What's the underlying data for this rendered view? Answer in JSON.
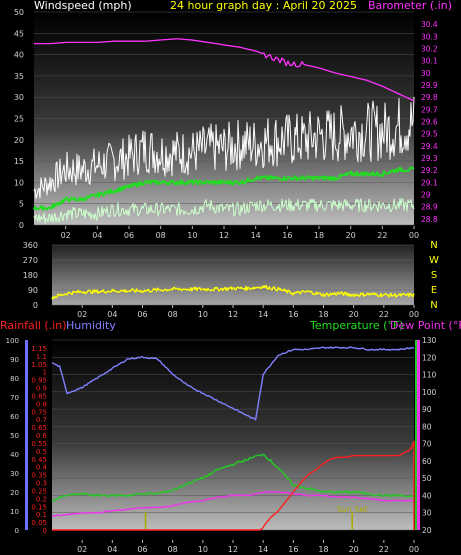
{
  "header": {
    "windspeed_label": "Windspeed (mph)",
    "title": "24 hour graph day : April 20 2025",
    "barometer_label": "Barometer (.in)"
  },
  "labels": {
    "rainfall": "Rainfall (.in)",
    "humidity": "Humidity",
    "temperature": "Temperature (°F)",
    "dew_point": "Dew Point (°F)",
    "sunrise": "Sunrise",
    "sunset": "Sun Set"
  },
  "colors": {
    "barometer": "#ff33ff",
    "wind_gust": "#ffffff",
    "wind_avg": "#22dd22",
    "wind_low": "#ccffcc",
    "direction": "#ffff00",
    "humidity": "#8080ff",
    "temperature": "#22cc22",
    "dew_point": "#ee33ee",
    "rainfall": "#ff2020",
    "sun_marker": "#aaaa00"
  },
  "chart_data": [
    {
      "type": "line",
      "title": "24 hour graph day : April 20 2025",
      "x_ticks": [
        "02",
        "04",
        "06",
        "08",
        "10",
        "12",
        "14",
        "16",
        "18",
        "20",
        "22",
        "00"
      ],
      "xlim": [
        0,
        24
      ],
      "y_left": {
        "label": "Windspeed (mph)",
        "lim": [
          0,
          50
        ],
        "ticks": [
          0,
          5,
          10,
          15,
          20,
          25,
          30,
          35,
          40,
          45,
          50
        ]
      },
      "y_right": {
        "label": "Barometer (.in)",
        "lim": [
          28.75,
          30.5
        ],
        "ticks": [
          "28.8",
          "28.9",
          "29",
          "29.1",
          "29.2",
          "29.3",
          "29.4",
          "29.5",
          "29.6",
          "29.7",
          "29.8",
          "29.9",
          "30",
          "30.1",
          "30.2",
          "30.3",
          "30.4"
        ]
      },
      "series": [
        {
          "key": "barometer",
          "axis": "right",
          "x": [
            0,
            1,
            2,
            3,
            4,
            5,
            6,
            7,
            8,
            9,
            10,
            11,
            12,
            13,
            14,
            15,
            16,
            17,
            18,
            19,
            20,
            21,
            22,
            23,
            24
          ],
          "y": [
            30.24,
            30.24,
            30.25,
            30.25,
            30.25,
            30.26,
            30.26,
            30.26,
            30.27,
            30.28,
            30.27,
            30.25,
            30.23,
            30.21,
            30.18,
            30.13,
            30.08,
            30.07,
            30.04,
            30.0,
            29.97,
            29.94,
            29.89,
            29.83,
            29.77
          ]
        },
        {
          "key": "wind_gust",
          "axis": "left",
          "x": [
            0,
            1,
            2,
            3,
            4,
            5,
            6,
            7,
            8,
            9,
            10,
            11,
            12,
            13,
            14,
            15,
            16,
            17,
            18,
            19,
            20,
            21,
            22,
            23,
            24
          ],
          "y": [
            8,
            10,
            13,
            13,
            14,
            15,
            16,
            18,
            17,
            17,
            17,
            18,
            18,
            19,
            19,
            20,
            20,
            20,
            21,
            21,
            22,
            22,
            22,
            23,
            24
          ]
        },
        {
          "key": "wind_avg",
          "axis": "left",
          "x": [
            0,
            1,
            2,
            3,
            4,
            5,
            6,
            7,
            8,
            9,
            10,
            11,
            12,
            13,
            14,
            15,
            16,
            17,
            18,
            19,
            20,
            21,
            22,
            23,
            24
          ],
          "y": [
            4,
            4,
            6,
            6,
            7,
            8,
            9,
            10,
            10,
            10,
            10,
            10,
            10,
            10,
            11,
            11,
            11,
            11,
            11,
            11,
            12,
            12,
            12,
            13,
            13
          ]
        },
        {
          "key": "wind_low",
          "axis": "left",
          "x": [
            0,
            1,
            2,
            3,
            4,
            5,
            6,
            7,
            8,
            9,
            10,
            11,
            12,
            13,
            14,
            15,
            16,
            17,
            18,
            19,
            20,
            21,
            22,
            23,
            24
          ],
          "y": [
            1,
            1,
            2,
            2,
            2,
            3,
            3,
            3,
            3,
            3,
            3,
            4,
            3,
            3,
            4,
            4,
            4,
            4,
            4,
            4,
            4,
            4,
            4,
            4,
            4
          ]
        }
      ]
    },
    {
      "type": "line",
      "x_ticks": [
        "02",
        "04",
        "06",
        "08",
        "10",
        "12",
        "14",
        "16",
        "18",
        "20",
        "22",
        "00"
      ],
      "xlim": [
        0,
        24
      ],
      "y_left": {
        "lim": [
          0,
          360
        ],
        "ticks": [
          0,
          90,
          180,
          270,
          360
        ]
      },
      "y_right": {
        "ticks": [
          "N",
          "W",
          "S",
          "E",
          "N"
        ]
      },
      "series": [
        {
          "key": "direction",
          "name": "Wind Direction",
          "x": [
            0,
            1,
            2,
            3,
            4,
            5,
            6,
            7,
            8,
            9,
            10,
            11,
            12,
            13,
            14,
            15,
            16,
            17,
            18,
            19,
            20,
            21,
            22,
            23,
            24
          ],
          "y": [
            45,
            70,
            80,
            80,
            85,
            85,
            85,
            90,
            95,
            95,
            95,
            95,
            100,
            100,
            110,
            95,
            70,
            80,
            60,
            70,
            60,
            65,
            60,
            58,
            60
          ]
        }
      ]
    },
    {
      "type": "line",
      "x_ticks": [
        "02",
        "04",
        "06",
        "08",
        "10",
        "12",
        "14",
        "16",
        "18",
        "20",
        "22",
        "00"
      ],
      "xlim": [
        0,
        24
      ],
      "y_rain": {
        "label": "Rainfall (.in)",
        "lim": [
          0,
          1.2
        ],
        "ticks": [
          "0",
          "0.05",
          "0.1",
          "0.15",
          "0.2",
          "0.25",
          "0.3",
          "0.35",
          "0.4",
          "0.45",
          "0.5",
          "0.55",
          "0.6",
          "0.65",
          "0.7",
          "0.75",
          "0.8",
          "0.85",
          "0.9",
          "0.95",
          "1",
          "1.05",
          "1.1",
          "1.15"
        ]
      },
      "y_humidity": {
        "label": "Humidity",
        "lim": [
          0,
          100
        ],
        "ticks": [
          0,
          10,
          20,
          30,
          40,
          50,
          60,
          70,
          80,
          90,
          100
        ]
      },
      "y_temp": {
        "label": "Temperature (°F)",
        "lim": [
          20,
          130
        ],
        "ticks": [
          20,
          30,
          40,
          50,
          60,
          70,
          80,
          90,
          100,
          110,
          120,
          130
        ]
      },
      "series": [
        {
          "key": "humidity",
          "axis": "humidity",
          "x": [
            0,
            0.5,
            1,
            2,
            3,
            4,
            5,
            6,
            7,
            8,
            9,
            10,
            11,
            12,
            13,
            13.5,
            14,
            15,
            16,
            17,
            18,
            19,
            20,
            21,
            22,
            23,
            24
          ],
          "y": [
            88,
            86,
            72,
            75,
            80,
            85,
            90,
            91,
            90,
            82,
            76,
            72,
            68,
            64,
            60,
            58,
            82,
            92,
            95,
            95,
            96,
            96,
            96,
            95,
            95,
            95,
            96
          ]
        },
        {
          "key": "temperature",
          "axis": "temp",
          "x": [
            0,
            1,
            2,
            3,
            4,
            5,
            6,
            7,
            8,
            9,
            10,
            11,
            12,
            13,
            14,
            15,
            16,
            17,
            18,
            19,
            20,
            21,
            22,
            23,
            24
          ],
          "y": [
            37,
            40,
            41,
            40,
            40,
            40,
            41,
            41,
            43,
            47,
            50,
            55,
            58,
            61,
            64,
            56,
            46,
            44,
            42,
            42,
            42,
            41,
            40,
            40,
            39
          ]
        },
        {
          "key": "dew_point",
          "axis": "temp",
          "x": [
            0,
            1,
            2,
            3,
            4,
            5,
            6,
            7,
            8,
            9,
            10,
            11,
            12,
            13,
            14,
            15,
            16,
            17,
            18,
            19,
            20,
            21,
            22,
            23,
            24
          ],
          "y": [
            28,
            29,
            30,
            30,
            31,
            32,
            33,
            33,
            34,
            36,
            37,
            39,
            40,
            40,
            42,
            42,
            41,
            40,
            40,
            39,
            39,
            38,
            37,
            37,
            37
          ]
        },
        {
          "key": "rainfall",
          "axis": "rain",
          "x": [
            0,
            13.9,
            14,
            14.5,
            15,
            15.5,
            16,
            16.5,
            17,
            17.5,
            18,
            18.5,
            19,
            19.5,
            20,
            21,
            22,
            23,
            23.8,
            24
          ],
          "y": [
            0,
            0,
            0.02,
            0.08,
            0.12,
            0.18,
            0.24,
            0.3,
            0.35,
            0.38,
            0.42,
            0.45,
            0.46,
            0.46,
            0.47,
            0.47,
            0.47,
            0.47,
            0.51,
            0.56
          ]
        }
      ],
      "markers": [
        {
          "label": "Sunrise",
          "x": 6.2
        },
        {
          "label": "Sun Set",
          "x": 19.9
        }
      ]
    }
  ]
}
